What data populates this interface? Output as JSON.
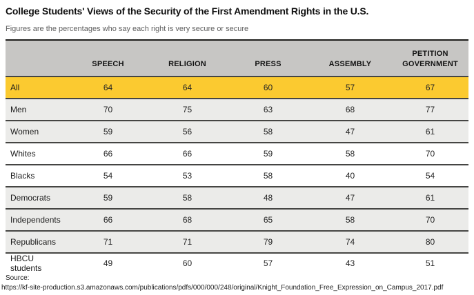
{
  "page": {
    "title": "College Students' Views of the Security of the First Amendment Rights in the U.S.",
    "subtitle": "Figures are the percentages who say each right is very secure or secure",
    "source_label": "Source:",
    "source_url": "https://kf-site-production.s3.amazonaws.com/publications/pdfs/000/000/248/original/Knight_Foundation_Free_Expression_on_Campus_2017.pdf"
  },
  "colors": {
    "highlight_row": "#fbca30",
    "header_bg": "#c7c6c4",
    "alt_row_bg": "#ebebe9",
    "row_border": "#454543",
    "table_top_border": "#1b1b19"
  },
  "chart_data": {
    "type": "table",
    "title": "College Students' Views of the Security of the First Amendment Rights in the U.S.",
    "subtitle": "Figures are the percentages who say each right is very secure or secure",
    "columns": [
      "",
      "SPEECH",
      "RELIGION",
      "PRESS",
      "ASSEMBLY",
      "PETITION GOVERNMENT"
    ],
    "rows": [
      {
        "label": "All",
        "values": [
          64,
          64,
          60,
          57,
          67
        ],
        "bg": "highlight",
        "short": false
      },
      {
        "label": "Men",
        "values": [
          70,
          75,
          63,
          68,
          77
        ],
        "bg": "gray",
        "short": false
      },
      {
        "label": "Women",
        "values": [
          59,
          56,
          58,
          47,
          61
        ],
        "bg": "gray",
        "short": false
      },
      {
        "label": "Whites",
        "values": [
          66,
          66,
          59,
          58,
          70
        ],
        "bg": "white",
        "short": false
      },
      {
        "label": "Blacks",
        "values": [
          54,
          53,
          58,
          40,
          54
        ],
        "bg": "white",
        "short": false
      },
      {
        "label": "Democrats",
        "values": [
          59,
          58,
          48,
          47,
          61
        ],
        "bg": "gray",
        "short": false
      },
      {
        "label": "Independents",
        "values": [
          66,
          68,
          65,
          58,
          70
        ],
        "bg": "gray",
        "short": false
      },
      {
        "label": "Republicans",
        "values": [
          71,
          71,
          79,
          74,
          80
        ],
        "bg": "gray",
        "short": false
      },
      {
        "label": "HBCU students",
        "values": [
          49,
          60,
          57,
          43,
          51
        ],
        "bg": "white",
        "short": true
      }
    ]
  }
}
